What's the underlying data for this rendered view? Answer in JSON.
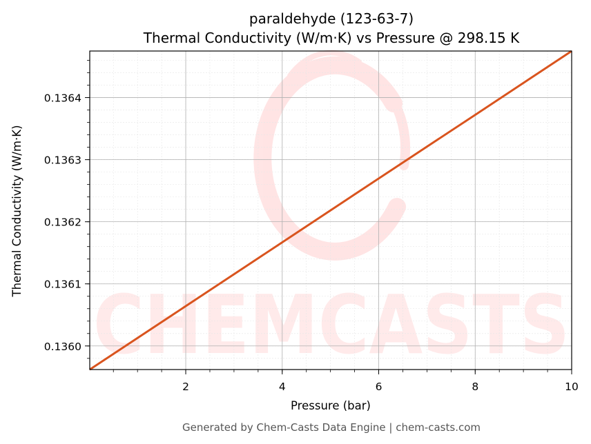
{
  "chart_data": {
    "type": "line",
    "title": "paraldehyde (123-63-7)",
    "subtitle": "Thermal Conductivity (W/m·K) vs Pressure @ 298.15 K",
    "xlabel": "Pressure (bar)",
    "ylabel": "Thermal Conductivity (W/m·K)",
    "xlim": [
      0.01,
      10
    ],
    "ylim": [
      0.135962,
      0.136475
    ],
    "x_ticks": [
      2,
      4,
      6,
      8,
      10
    ],
    "x_tick_labels": [
      "2",
      "4",
      "6",
      "8",
      "10"
    ],
    "y_ticks": [
      0.136,
      0.1361,
      0.1362,
      0.1363,
      0.1364
    ],
    "y_tick_labels": [
      "0.1360",
      "0.1361",
      "0.1362",
      "0.1363",
      "0.1364"
    ],
    "grid": true,
    "series": [
      {
        "color": "#d9541e",
        "x": [
          0.01,
          2,
          4,
          6,
          8,
          10
        ],
        "y": [
          0.135962,
          0.1360641,
          0.1361669,
          0.1362697,
          0.1363722,
          0.136475
        ]
      }
    ]
  },
  "footer": "Generated by Chem-Casts Data Engine | chem-casts.com",
  "watermark": "CHEMCASTS"
}
